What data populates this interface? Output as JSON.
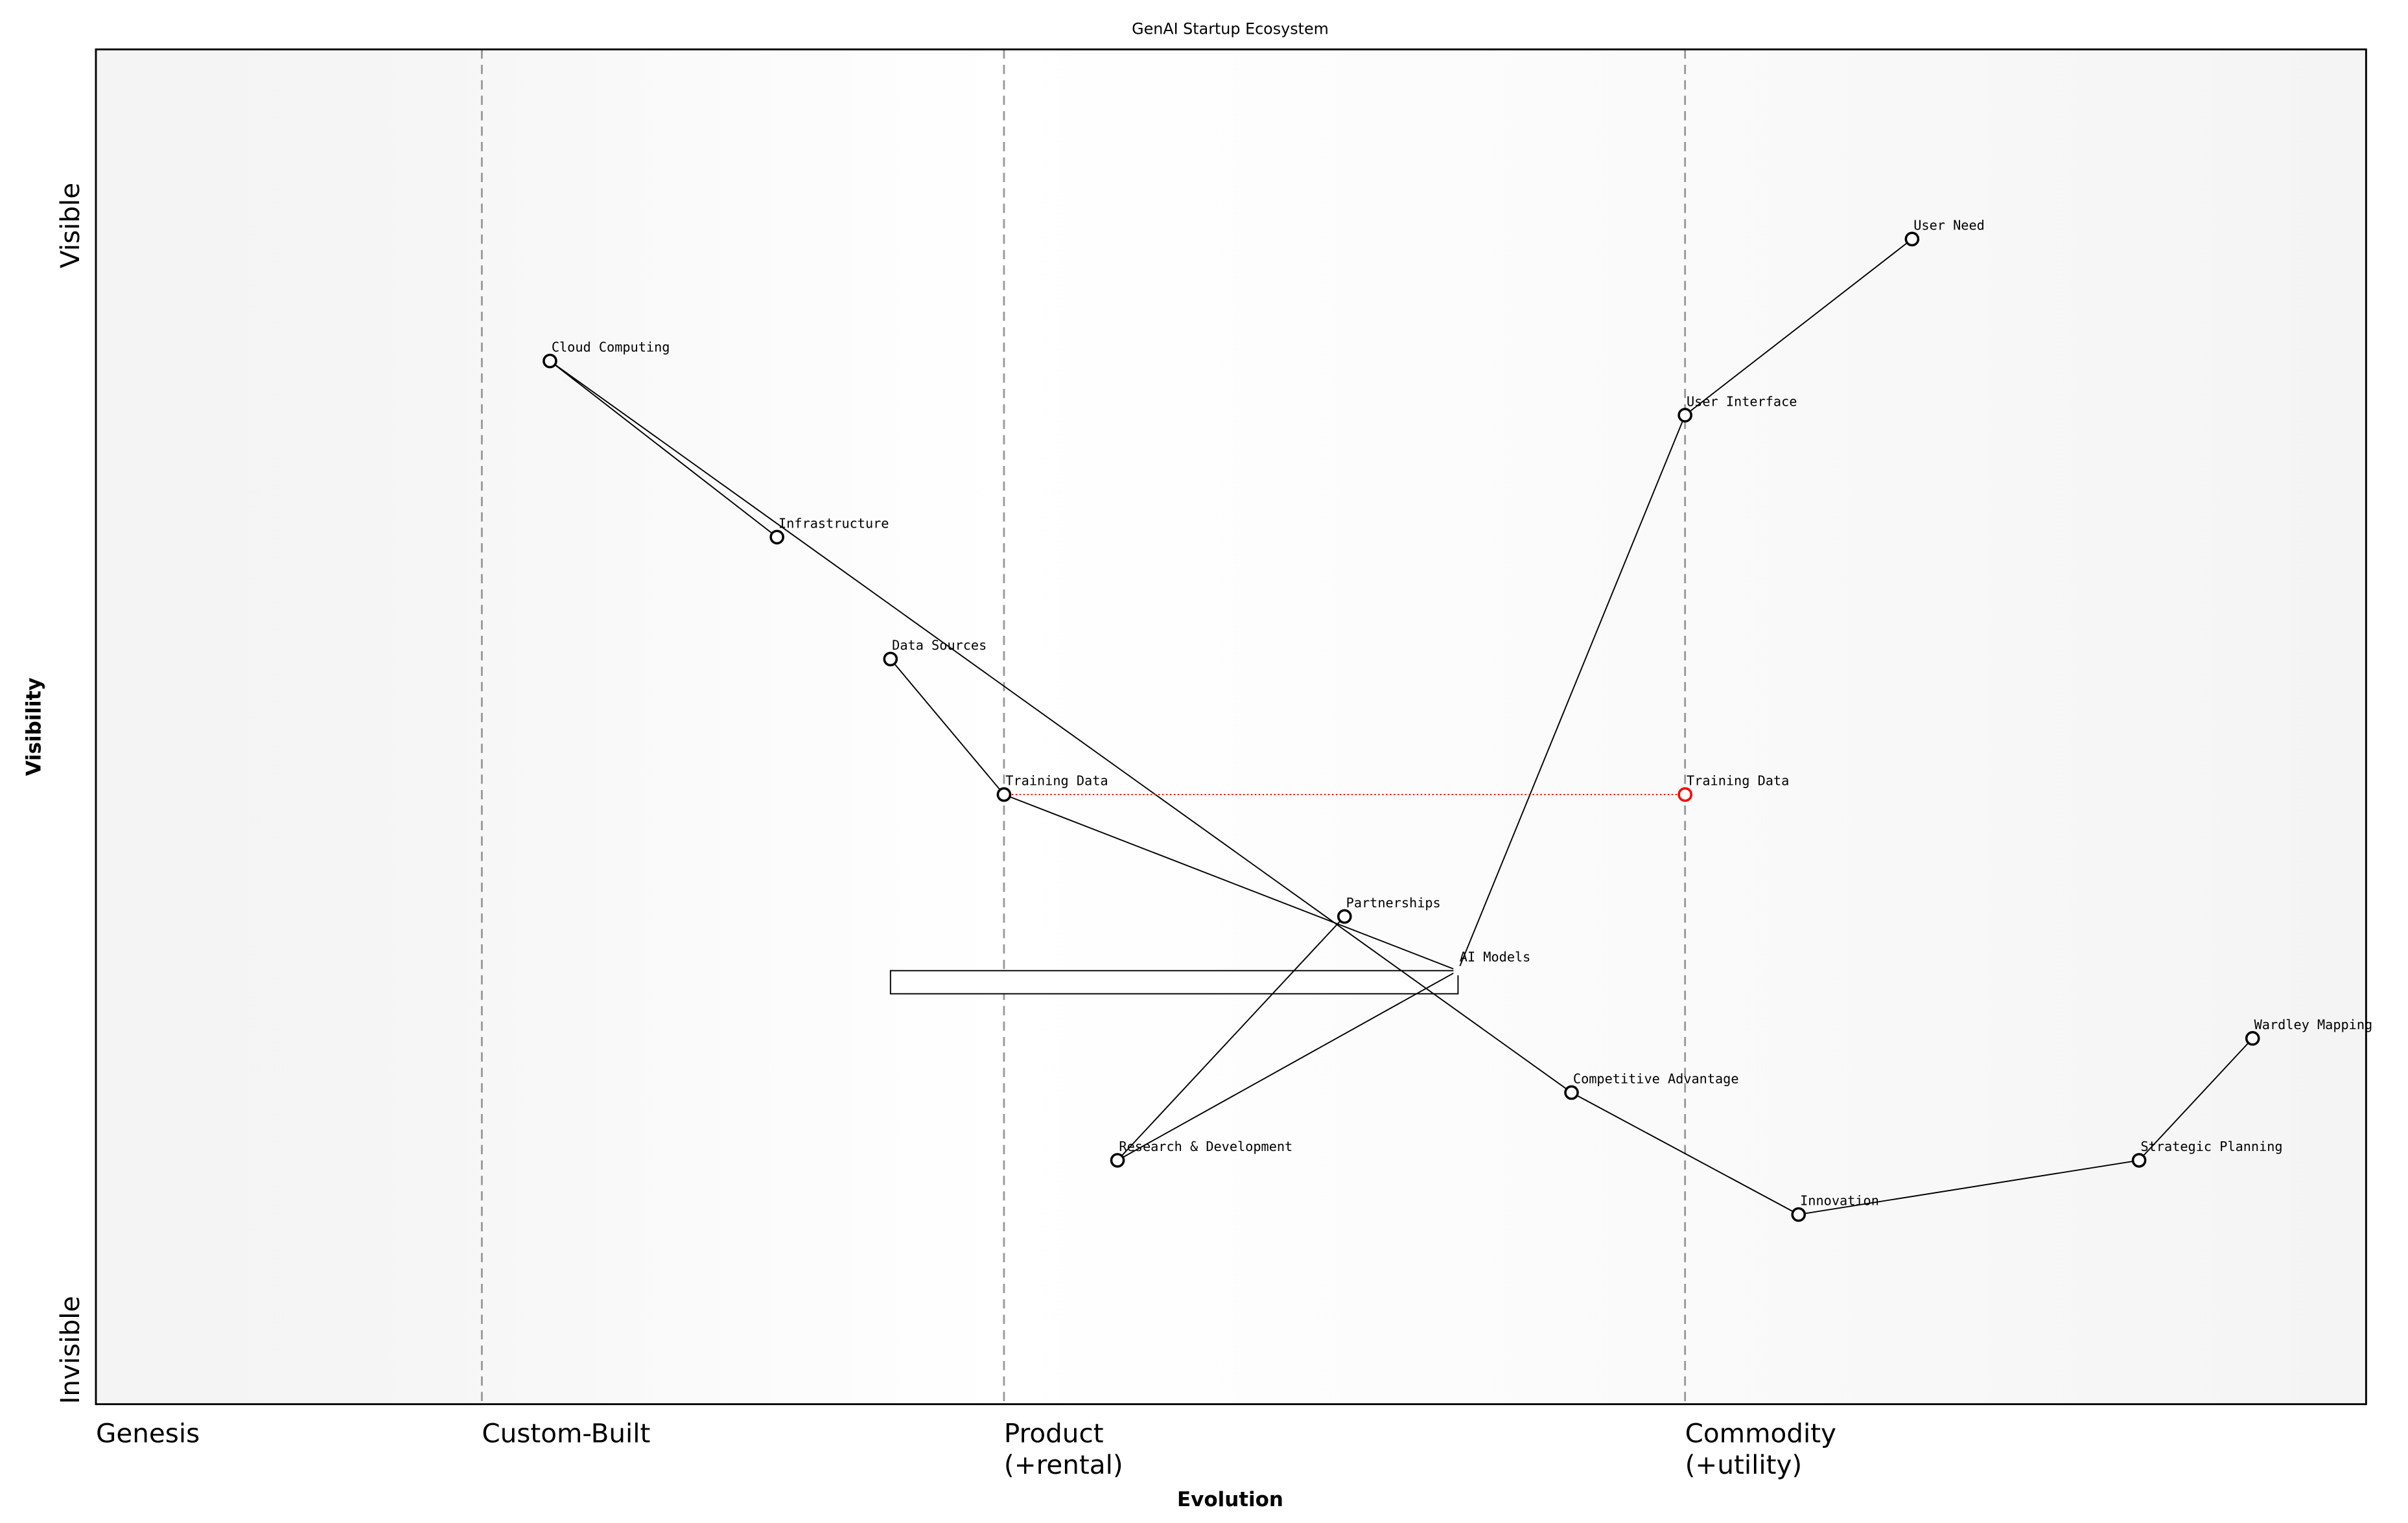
{
  "chart_data": {
    "type": "wardley",
    "title": "GenAI Startup Ecosystem",
    "x_label": "Evolution",
    "y_label": "Visibility",
    "xlim": [
      0,
      1
    ],
    "ylim": [
      0,
      1
    ],
    "xticks": [
      {
        "value": 0,
        "label": "Genesis"
      },
      {
        "value": 0.17,
        "label": "Custom-Built"
      },
      {
        "value": 0.4,
        "label": "Product\n(+rental)"
      },
      {
        "value": 0.7,
        "label": "Commodity\n(+utility)"
      }
    ],
    "yticks": [
      {
        "value": 0.04,
        "label": "Invisible"
      },
      {
        "value": 0.87,
        "label": "Visible"
      }
    ],
    "components": [
      {
        "name": "User Need",
        "evolution": 0.8,
        "visibility": 0.86
      },
      {
        "name": "Cloud Computing",
        "evolution": 0.2,
        "visibility": 0.77
      },
      {
        "name": "User Interface",
        "evolution": 0.7,
        "visibility": 0.73
      },
      {
        "name": "Infrastructure",
        "evolution": 0.3,
        "visibility": 0.64
      },
      {
        "name": "Data Sources",
        "evolution": 0.35,
        "visibility": 0.55
      },
      {
        "name": "Training Data",
        "evolution": 0.4,
        "visibility": 0.45
      },
      {
        "name": "Partnerships",
        "evolution": 0.55,
        "visibility": 0.36
      },
      {
        "name": "AI Models",
        "evolution": 0.6,
        "visibility": 0.32
      },
      {
        "name": "Competitive Advantage",
        "evolution": 0.65,
        "visibility": 0.23
      },
      {
        "name": "Research & Development",
        "evolution": 0.45,
        "visibility": 0.18
      },
      {
        "name": "Innovation",
        "evolution": 0.75,
        "visibility": 0.14
      },
      {
        "name": "Strategic Planning",
        "evolution": 0.9,
        "visibility": 0.18
      },
      {
        "name": "Wardley Mapping",
        "evolution": 0.95,
        "visibility": 0.27
      }
    ],
    "links": [
      [
        "User Need",
        "User Interface"
      ],
      [
        "User Interface",
        "AI Models"
      ],
      [
        "Cloud Computing",
        "Infrastructure"
      ],
      [
        "Cloud Computing",
        "Competitive Advantage"
      ],
      [
        "Data Sources",
        "Training Data"
      ],
      [
        "Training Data",
        "AI Models"
      ],
      [
        "Partnerships",
        "Research & Development"
      ],
      [
        "Research & Development",
        "AI Models"
      ],
      [
        "Competitive Advantage",
        "Innovation"
      ],
      [
        "Innovation",
        "Strategic Planning"
      ],
      [
        "Strategic Planning",
        "Wardley Mapping"
      ]
    ],
    "evolve": [
      {
        "component": "Training Data",
        "label": "Training Data",
        "evolution": 0.7,
        "color": "#ff0000"
      }
    ],
    "pipelines": [
      {
        "component": "AI Models",
        "start": 0.35,
        "end": 0.6
      }
    ]
  }
}
